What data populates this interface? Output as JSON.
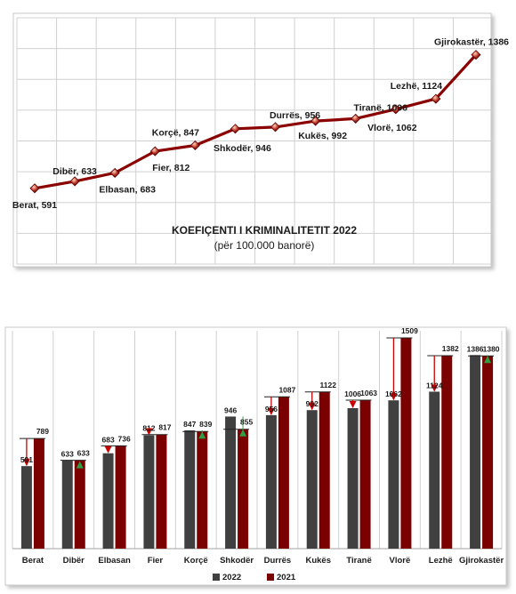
{
  "charts": [
    {
      "type": "line",
      "title": "KOEFIÇENTI I KRIMINALITETIT 2022",
      "subtitle": "(për 100.000 banorë)",
      "categories": [
        "Berat",
        "Dibër",
        "Elbasan",
        "Fier",
        "Korçë",
        "Shkodër",
        "Durrës",
        "Kukës",
        "Tiranë",
        "Vlorë",
        "Lezhë",
        "Gjirokastër"
      ],
      "values": [
        591,
        633,
        683,
        812,
        847,
        946,
        956,
        992,
        1006,
        1062,
        1124,
        1386
      ],
      "point_labels": [
        "Berat, 591",
        "Dibër, 633",
        "Elbasan, 683",
        "Fier, 812",
        "Korçë, 847",
        "Shkodër, 946",
        "Durrës, 956",
        "Kukës, 992",
        "Tiranë, 1006",
        "Vlorë, 1062",
        "Lezhë, 1124",
        "Gjirokastër, 1386"
      ],
      "line_color": "#8b0000",
      "marker_color": "#c0392b",
      "grid": true
    },
    {
      "type": "bar",
      "categories": [
        "Berat",
        "Dibër",
        "Elbasan",
        "Fier",
        "Korçë",
        "Shkodër",
        "Durrës",
        "Kukës",
        "Tiranë",
        "Vlorë",
        "Lezhë",
        "Gjirokastër"
      ],
      "series": [
        {
          "name": "2022",
          "color": "#404040",
          "values": [
            591,
            633,
            683,
            812,
            847,
            946,
            956,
            992,
            1006,
            1062,
            1124,
            1386
          ]
        },
        {
          "name": "2021",
          "color": "#7b0000",
          "values": [
            789,
            633,
            736,
            817,
            839,
            855,
            1087,
            1122,
            1063,
            1509,
            1382,
            1380
          ]
        }
      ],
      "trend_colors": {
        "down": "#cc0000",
        "up": "#2ea043"
      },
      "legend_position": "bottom",
      "grid": true,
      "ylim": [
        0,
        1560
      ]
    }
  ]
}
